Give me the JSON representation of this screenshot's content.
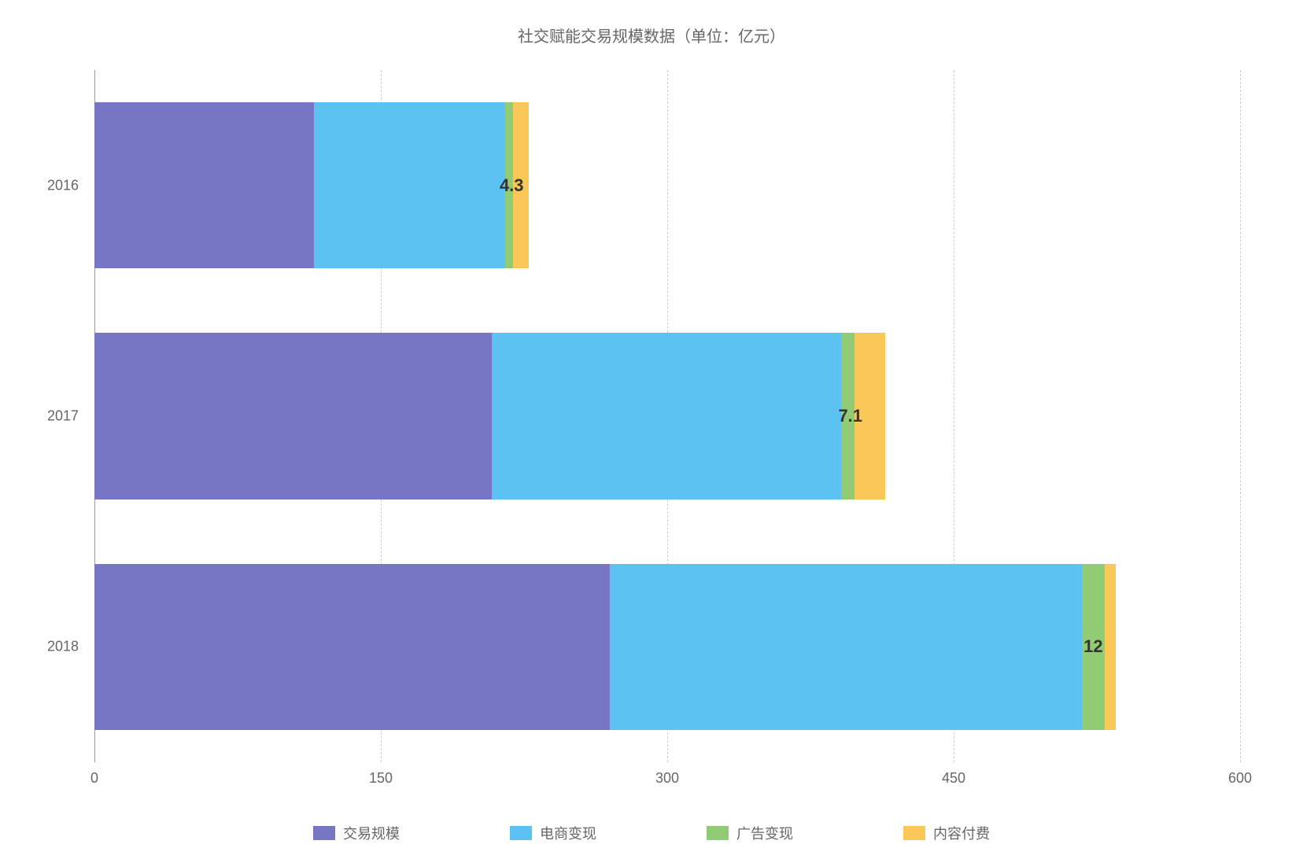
{
  "chart": {
    "type": "horizontal_stacked_bar",
    "title": "社交赋能交易规模数据（单位：亿元）",
    "title_fontsize": 20,
    "title_color": "#666666",
    "background_color": "#ffffff",
    "grid_color": "#cccccc",
    "axis_color": "#999999",
    "label_color": "#666666",
    "label_fontsize": 18,
    "xlim": [
      0,
      600
    ],
    "xtick_step": 150,
    "xticks": [
      0,
      150,
      300,
      450,
      600
    ],
    "categories": [
      "2016",
      "2017",
      "2018"
    ],
    "series": [
      {
        "name": "交易规模",
        "color": "#7676c4",
        "values": [
          115,
          208,
          270
        ]
      },
      {
        "name": "电商变现",
        "color": "#5cc2f2",
        "values": [
          100,
          183,
          247
        ]
      },
      {
        "name": "广告变现",
        "color": "#91cc75",
        "values": [
          4.3,
          7.1,
          12
        ]
      },
      {
        "name": "内容付费",
        "color": "#fac858",
        "values": [
          8,
          16,
          6
        ]
      }
    ],
    "visible_value_labels": [
      "4.3",
      "7.1",
      "12"
    ],
    "value_label_series_index": 2,
    "value_label_fontsize": 22,
    "value_label_color": "#333333",
    "bar_group_height_ratio": 0.72,
    "bar_gap_ratio": 0.28
  }
}
